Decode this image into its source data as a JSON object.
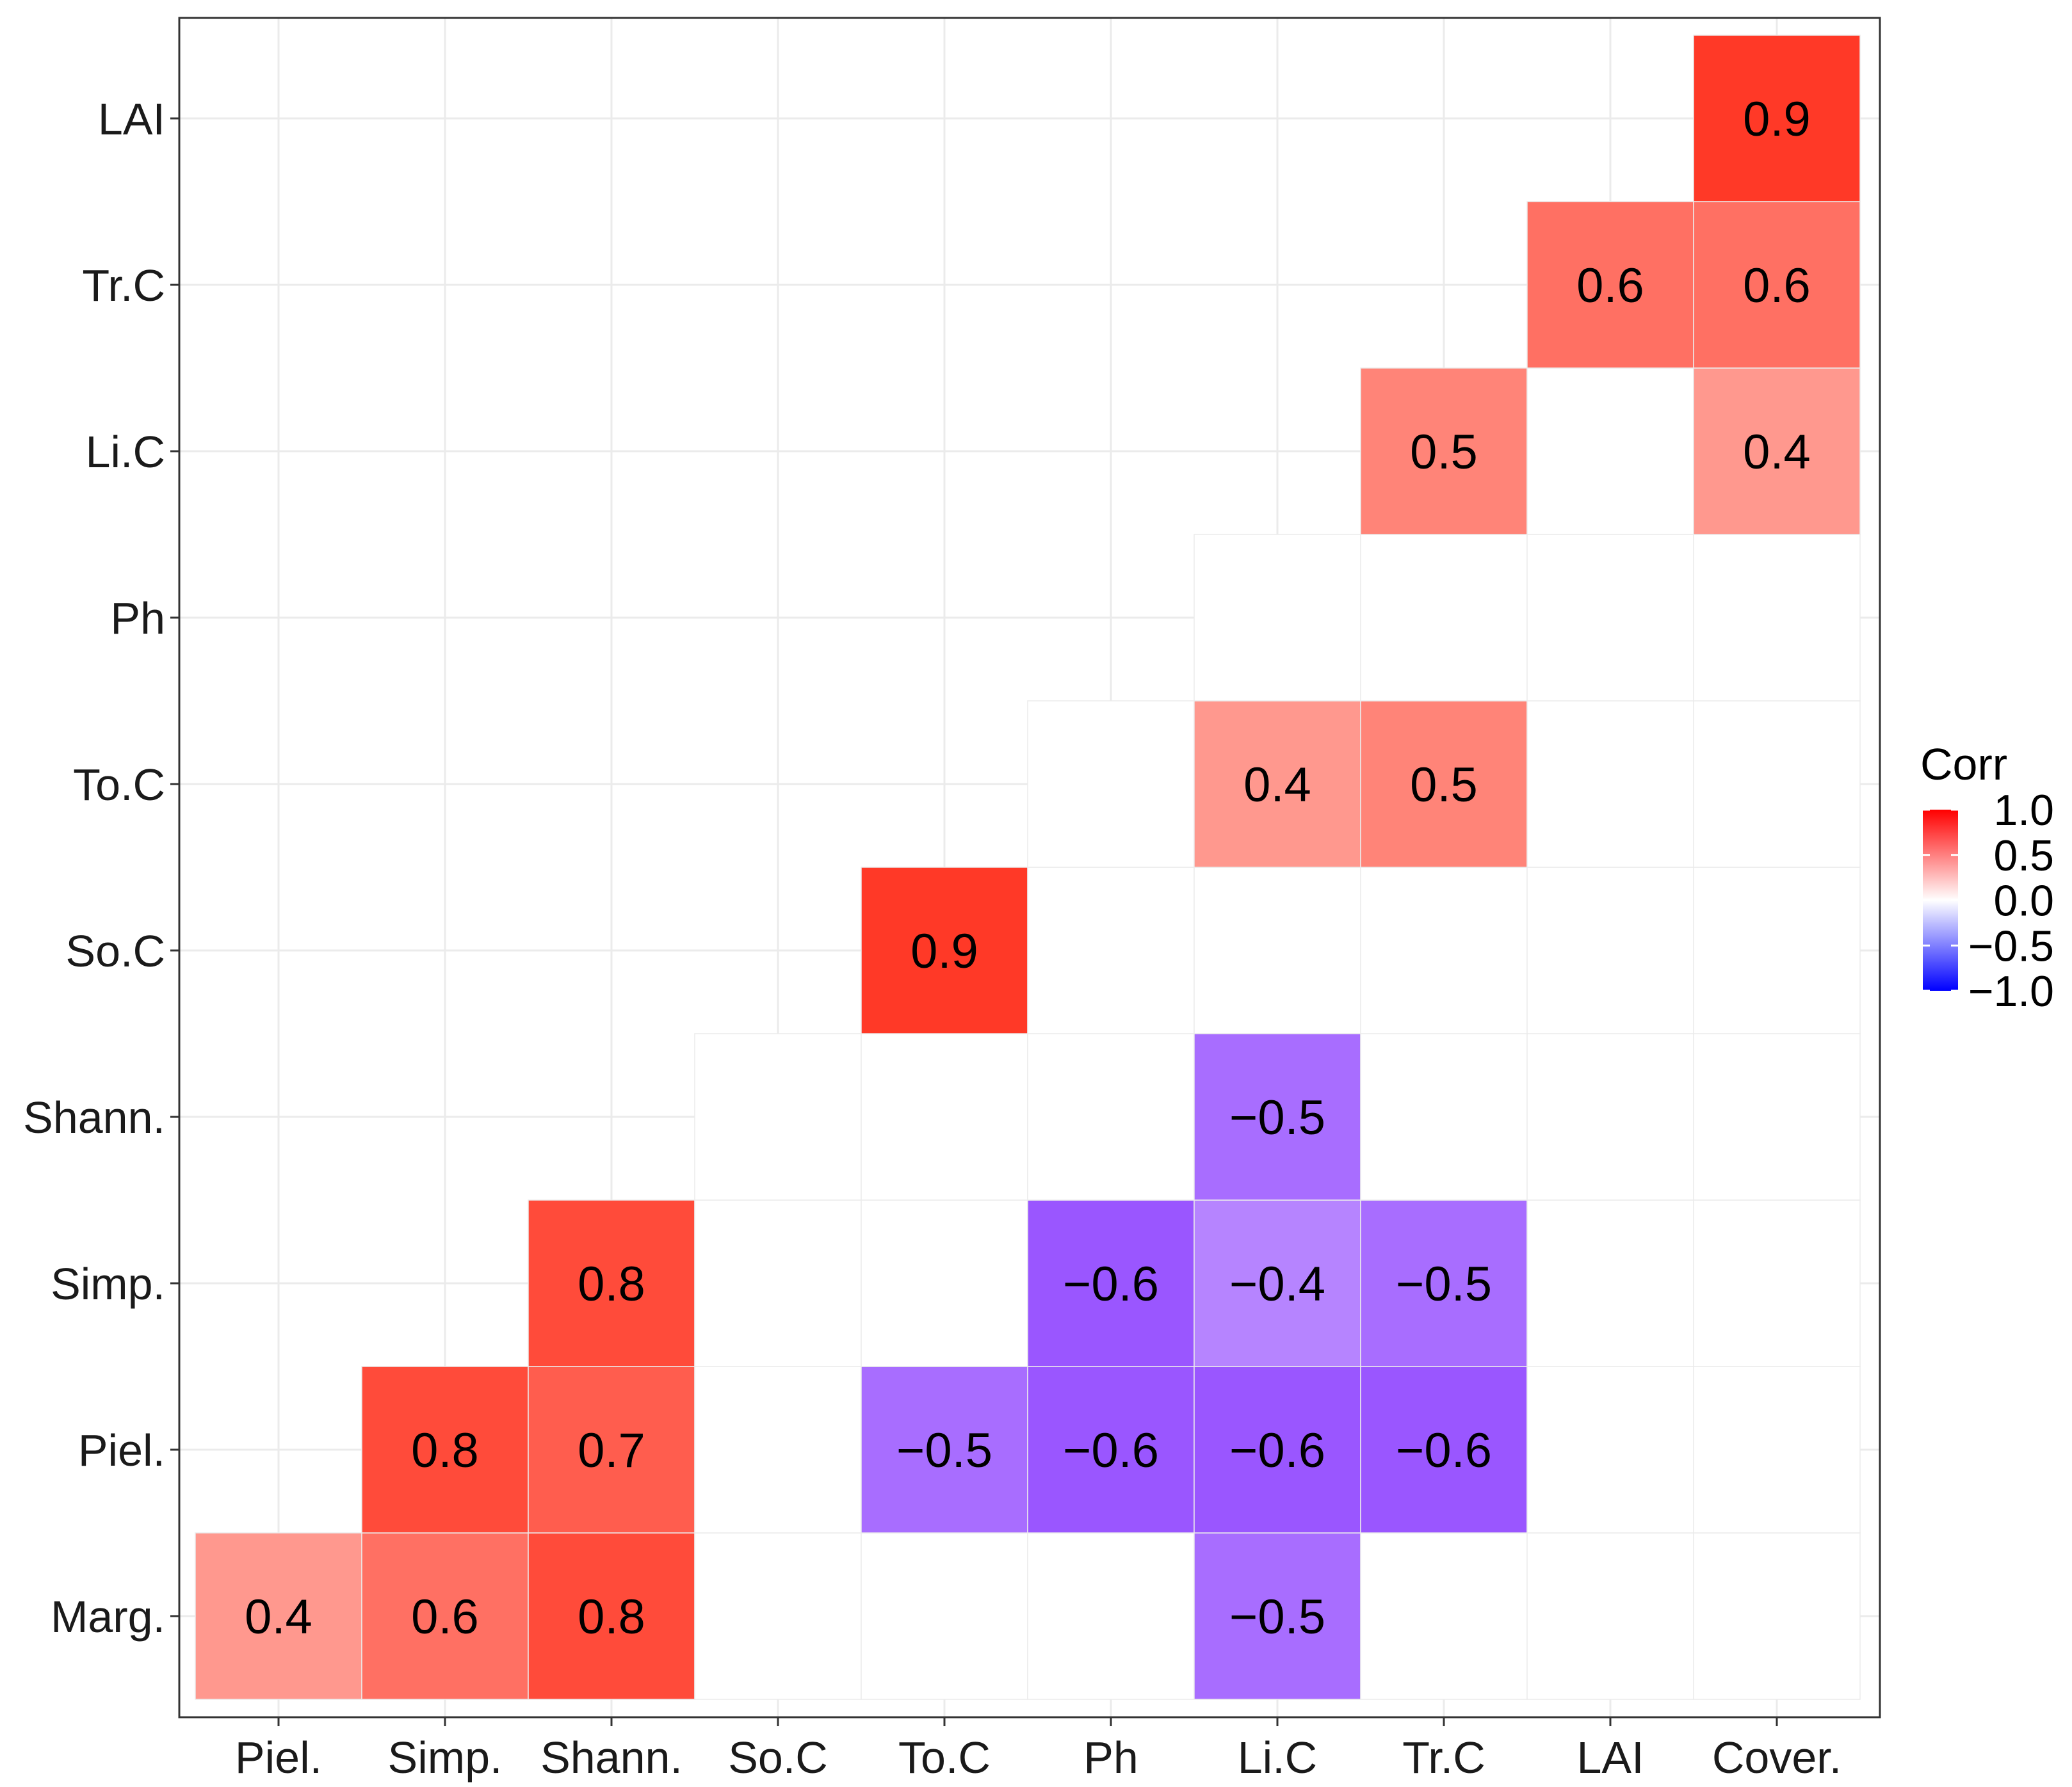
{
  "chart_data": {
    "type": "heatmap",
    "title": "",
    "xlabel": "",
    "ylabel": "",
    "x_categories": [
      "Piel.",
      "Simp.",
      "Shann.",
      "So.C",
      "To.C",
      "Ph",
      "Li.C",
      "Tr.C",
      "LAI",
      "Cover."
    ],
    "y_categories": [
      "Marg.",
      "Piel.",
      "Simp.",
      "Shann.",
      "So.C",
      "To.C",
      "Ph",
      "Li.C",
      "Tr.C",
      "LAI"
    ],
    "cells": [
      {
        "x": "Piel.",
        "y": "Marg.",
        "value": 0.4,
        "shown": true
      },
      {
        "x": "Simp.",
        "y": "Marg.",
        "value": 0.6,
        "shown": true
      },
      {
        "x": "Shann.",
        "y": "Marg.",
        "value": 0.8,
        "shown": true
      },
      {
        "x": "So.C",
        "y": "Marg.",
        "value": 0,
        "shown": false
      },
      {
        "x": "To.C",
        "y": "Marg.",
        "value": 0,
        "shown": false
      },
      {
        "x": "Ph",
        "y": "Marg.",
        "value": 0,
        "shown": false
      },
      {
        "x": "Li.C",
        "y": "Marg.",
        "value": -0.5,
        "shown": true
      },
      {
        "x": "Tr.C",
        "y": "Marg.",
        "value": 0,
        "shown": false
      },
      {
        "x": "LAI",
        "y": "Marg.",
        "value": 0,
        "shown": false
      },
      {
        "x": "Cover.",
        "y": "Marg.",
        "value": 0,
        "shown": false
      },
      {
        "x": "Simp.",
        "y": "Piel.",
        "value": 0.8,
        "shown": true
      },
      {
        "x": "Shann.",
        "y": "Piel.",
        "value": 0.7,
        "shown": true
      },
      {
        "x": "So.C",
        "y": "Piel.",
        "value": 0,
        "shown": false
      },
      {
        "x": "To.C",
        "y": "Piel.",
        "value": -0.5,
        "shown": true
      },
      {
        "x": "Ph",
        "y": "Piel.",
        "value": -0.6,
        "shown": true
      },
      {
        "x": "Li.C",
        "y": "Piel.",
        "value": -0.6,
        "shown": true
      },
      {
        "x": "Tr.C",
        "y": "Piel.",
        "value": -0.6,
        "shown": true
      },
      {
        "x": "LAI",
        "y": "Piel.",
        "value": 0,
        "shown": false
      },
      {
        "x": "Cover.",
        "y": "Piel.",
        "value": 0,
        "shown": false
      },
      {
        "x": "Shann.",
        "y": "Simp.",
        "value": 0.8,
        "shown": true
      },
      {
        "x": "So.C",
        "y": "Simp.",
        "value": 0,
        "shown": false
      },
      {
        "x": "To.C",
        "y": "Simp.",
        "value": 0,
        "shown": false
      },
      {
        "x": "Ph",
        "y": "Simp.",
        "value": -0.6,
        "shown": true
      },
      {
        "x": "Li.C",
        "y": "Simp.",
        "value": -0.4,
        "shown": true
      },
      {
        "x": "Tr.C",
        "y": "Simp.",
        "value": -0.5,
        "shown": true
      },
      {
        "x": "LAI",
        "y": "Simp.",
        "value": 0,
        "shown": false
      },
      {
        "x": "Cover.",
        "y": "Simp.",
        "value": 0,
        "shown": false
      },
      {
        "x": "So.C",
        "y": "Shann.",
        "value": 0,
        "shown": false
      },
      {
        "x": "To.C",
        "y": "Shann.",
        "value": 0,
        "shown": false
      },
      {
        "x": "Ph",
        "y": "Shann.",
        "value": 0,
        "shown": false
      },
      {
        "x": "Li.C",
        "y": "Shann.",
        "value": -0.5,
        "shown": true
      },
      {
        "x": "Tr.C",
        "y": "Shann.",
        "value": 0,
        "shown": false
      },
      {
        "x": "LAI",
        "y": "Shann.",
        "value": 0,
        "shown": false
      },
      {
        "x": "Cover.",
        "y": "Shann.",
        "value": 0,
        "shown": false
      },
      {
        "x": "To.C",
        "y": "So.C",
        "value": 0.9,
        "shown": true
      },
      {
        "x": "Ph",
        "y": "So.C",
        "value": 0,
        "shown": false
      },
      {
        "x": "Li.C",
        "y": "So.C",
        "value": 0,
        "shown": false
      },
      {
        "x": "Tr.C",
        "y": "So.C",
        "value": 0,
        "shown": false
      },
      {
        "x": "LAI",
        "y": "So.C",
        "value": 0,
        "shown": false
      },
      {
        "x": "Cover.",
        "y": "So.C",
        "value": 0,
        "shown": false
      },
      {
        "x": "Ph",
        "y": "To.C",
        "value": 0,
        "shown": false
      },
      {
        "x": "Li.C",
        "y": "To.C",
        "value": 0.4,
        "shown": true
      },
      {
        "x": "Tr.C",
        "y": "To.C",
        "value": 0.5,
        "shown": true
      },
      {
        "x": "LAI",
        "y": "To.C",
        "value": 0,
        "shown": false
      },
      {
        "x": "Cover.",
        "y": "To.C",
        "value": 0,
        "shown": false
      },
      {
        "x": "Li.C",
        "y": "Ph",
        "value": 0,
        "shown": false
      },
      {
        "x": "Tr.C",
        "y": "Ph",
        "value": 0,
        "shown": false
      },
      {
        "x": "LAI",
        "y": "Ph",
        "value": 0,
        "shown": false
      },
      {
        "x": "Cover.",
        "y": "Ph",
        "value": 0,
        "shown": false
      },
      {
        "x": "Tr.C",
        "y": "Li.C",
        "value": 0.5,
        "shown": true
      },
      {
        "x": "LAI",
        "y": "Li.C",
        "value": 0,
        "shown": false
      },
      {
        "x": "Cover.",
        "y": "Li.C",
        "value": 0.4,
        "shown": true
      },
      {
        "x": "LAI",
        "y": "Tr.C",
        "value": 0.6,
        "shown": true
      },
      {
        "x": "Cover.",
        "y": "Tr.C",
        "value": 0.6,
        "shown": true
      },
      {
        "x": "Cover.",
        "y": "LAI",
        "value": 0.9,
        "shown": true
      }
    ],
    "legend": {
      "title": "Corr",
      "position": "right",
      "ticks": [
        {
          "value": 1.0,
          "label": "1.0"
        },
        {
          "value": 0.5,
          "label": "0.5"
        },
        {
          "value": 0.0,
          "label": "0.0"
        },
        {
          "value": -0.5,
          "label": "−0.5"
        },
        {
          "value": -1.0,
          "label": "−1.0"
        }
      ]
    },
    "value_range": [
      -1,
      1
    ],
    "colors": {
      "high": "#FF0000",
      "mid": "#FFFFFF",
      "low": "#0000FF"
    },
    "grid": true
  }
}
